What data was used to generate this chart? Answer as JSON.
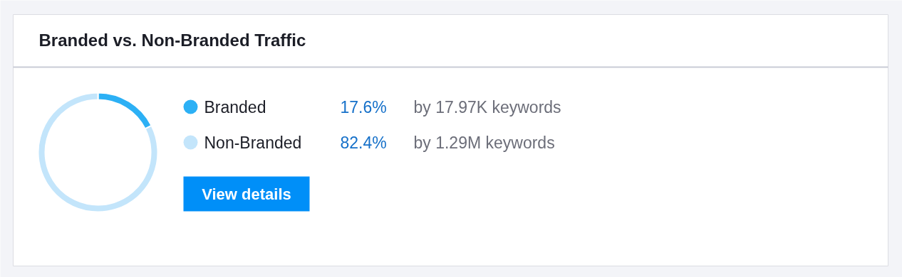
{
  "chart_data": {
    "type": "donut",
    "title": "Branded vs. Non-Branded Traffic",
    "categories": [
      "Branded",
      "Non-Branded"
    ],
    "values": [
      17.6,
      82.4
    ],
    "colors": [
      "#2cb0f5",
      "#c3e5fb"
    ],
    "value_labels": [
      "17.6%",
      "82.4%"
    ],
    "annotations": [
      "by 17.97K keywords",
      "by 1.29M keywords",
      "View details"
    ],
    "legend": "right"
  }
}
